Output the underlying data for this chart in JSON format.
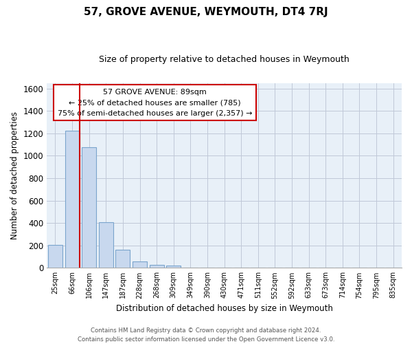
{
  "title": "57, GROVE AVENUE, WEYMOUTH, DT4 7RJ",
  "subtitle": "Size of property relative to detached houses in Weymouth",
  "xlabel": "Distribution of detached houses by size in Weymouth",
  "ylabel": "Number of detached properties",
  "bar_labels": [
    "25sqm",
    "66sqm",
    "106sqm",
    "147sqm",
    "187sqm",
    "228sqm",
    "268sqm",
    "309sqm",
    "349sqm",
    "390sqm",
    "430sqm",
    "471sqm",
    "511sqm",
    "552sqm",
    "592sqm",
    "633sqm",
    "673sqm",
    "714sqm",
    "754sqm",
    "795sqm",
    "835sqm"
  ],
  "bar_values": [
    205,
    1225,
    1075,
    410,
    160,
    55,
    25,
    20,
    0,
    0,
    0,
    0,
    0,
    0,
    0,
    0,
    0,
    0,
    0,
    0,
    0
  ],
  "bar_color": "#c8d8ee",
  "bar_edge_color": "#7aa4cc",
  "marker_color": "#cc0000",
  "ylim": [
    0,
    1650
  ],
  "yticks": [
    0,
    200,
    400,
    600,
    800,
    1000,
    1200,
    1400,
    1600
  ],
  "annotation_title": "57 GROVE AVENUE: 89sqm",
  "annotation_line1": "← 25% of detached houses are smaller (785)",
  "annotation_line2": "75% of semi-detached houses are larger (2,357) →",
  "footer1": "Contains HM Land Registry data © Crown copyright and database right 2024.",
  "footer2": "Contains public sector information licensed under the Open Government Licence v3.0.",
  "bg_color": "#ffffff",
  "plot_bg_color": "#e8f0f8",
  "grid_color": "#c0c8d8"
}
